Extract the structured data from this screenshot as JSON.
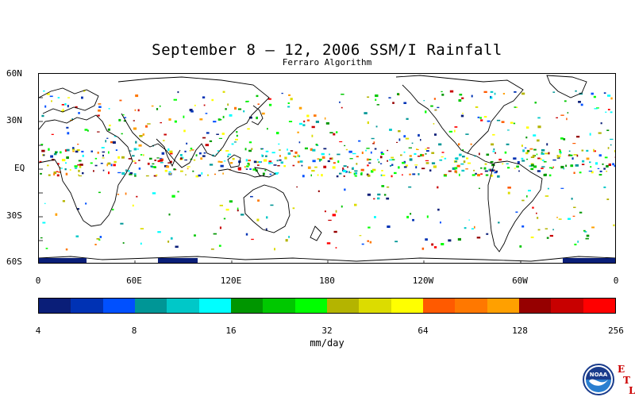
{
  "title": "September 8 – 12, 2006 SSM/I Rainfall",
  "subtitle": "Ferraro Algorithm",
  "lat_labels": [
    "60N",
    "30N",
    "EQ",
    "30S",
    "60S"
  ],
  "lon_labels": [
    "0",
    "60E",
    "120E",
    "180",
    "120W",
    "60W",
    "0"
  ],
  "colorbar": {
    "colors": [
      "#0a1e78",
      "#0032b4",
      "#0050ff",
      "#009696",
      "#00c8c8",
      "#00ffff",
      "#009600",
      "#00c800",
      "#00ff00",
      "#b4b400",
      "#dcdc00",
      "#ffff00",
      "#ff5a00",
      "#ff7800",
      "#ffa000",
      "#960000",
      "#c80000",
      "#ff0000"
    ],
    "tick_labels": [
      "4",
      "8",
      "16",
      "32",
      "64",
      "128",
      "256"
    ]
  },
  "units": "mm/day",
  "logo": {
    "name": "NOAA",
    "badge_letters": [
      "E",
      "T",
      "L"
    ]
  }
}
